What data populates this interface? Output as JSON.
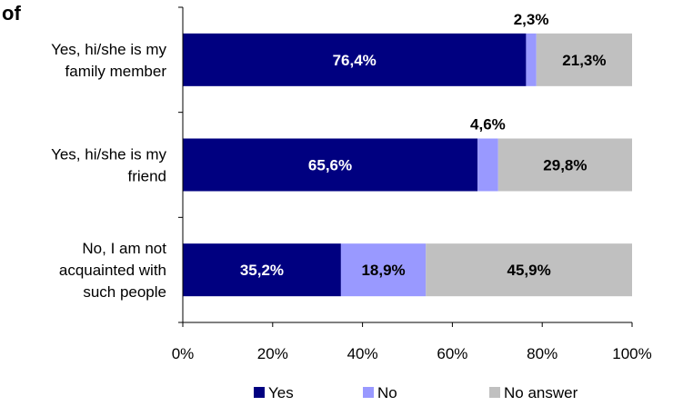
{
  "chart_data": {
    "type": "bar",
    "orientation": "horizontal",
    "stacked": true,
    "title": "of",
    "categories": [
      [
        "Yes, hi/she is my",
        "family member"
      ],
      [
        "Yes, hi/she is my",
        "friend"
      ],
      [
        "No, I am not",
        "acquainted with",
        "such people"
      ]
    ],
    "series": [
      {
        "name": "Yes",
        "color": "#000080",
        "values": [
          76.4,
          65.6,
          35.2
        ],
        "labels": [
          "76,4%",
          "65,6%",
          "35,2%"
        ]
      },
      {
        "name": "No",
        "color": "#9999ff",
        "values": [
          2.3,
          4.6,
          18.9
        ],
        "labels": [
          "2,3%",
          "4,6%",
          "18,9%"
        ]
      },
      {
        "name": "No answer",
        "color": "#c0c0c0",
        "values": [
          21.3,
          29.8,
          45.9
        ],
        "labels": [
          "21,3%",
          "29,8%",
          "45,9%"
        ]
      }
    ],
    "xlim": [
      0,
      100
    ],
    "xticks": [
      0,
      20,
      40,
      60,
      80,
      100
    ],
    "xtick_labels": [
      "0%",
      "20%",
      "40%",
      "60%",
      "80%",
      "100%"
    ],
    "grid": false,
    "legend_position": "bottom"
  }
}
